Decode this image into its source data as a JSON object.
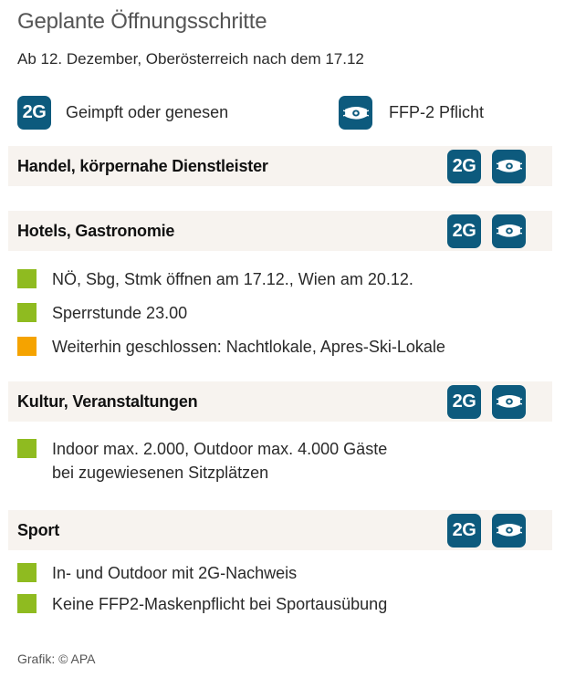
{
  "title": "Geplante Öffnungsschritte",
  "subtitle": "Ab 12. Dezember, Oberösterreich nach dem 17.12",
  "colors": {
    "badge": "#0d5a7d",
    "section_bg": "#f7f3ef",
    "green": "#8fbb20",
    "orange": "#f5a300"
  },
  "legend": {
    "two_g": {
      "badge": "2G",
      "label": "Geimpft oder genesen"
    },
    "mask": {
      "icon": "mask-icon",
      "label": "FFP-2 Pflicht"
    }
  },
  "sections": [
    {
      "title": "Handel, körpernahe Dienstleister",
      "badge": "2G",
      "items": []
    },
    {
      "title": "Hotels, Gastronomie",
      "badge": "2G",
      "items": [
        {
          "color": "green",
          "lines": [
            "NÖ, Sbg, Stmk öffnen am 17.12., Wien am 20.12."
          ]
        },
        {
          "color": "green",
          "lines": [
            "Sperrstunde 23.00"
          ]
        },
        {
          "color": "orange",
          "lines": [
            "Weiterhin geschlossen: Nachtlokale, Apres-Ski-Lokale"
          ]
        }
      ]
    },
    {
      "title": "Kultur, Veranstaltungen",
      "badge": "2G",
      "items": [
        {
          "color": "green",
          "lines": [
            "Indoor max. 2.000, Outdoor max. 4.000 Gäste",
            "bei zugewiesenen Sitzplätzen"
          ]
        }
      ]
    },
    {
      "title": "Sport",
      "badge": "2G",
      "items": [
        {
          "color": "green",
          "lines": [
            "In- und Outdoor mit 2G-Nachweis"
          ]
        },
        {
          "color": "green",
          "lines": [
            "Keine FFP2-Maskenpflicht bei Sportausübung"
          ]
        }
      ]
    }
  ],
  "source": "Grafik: © APA"
}
